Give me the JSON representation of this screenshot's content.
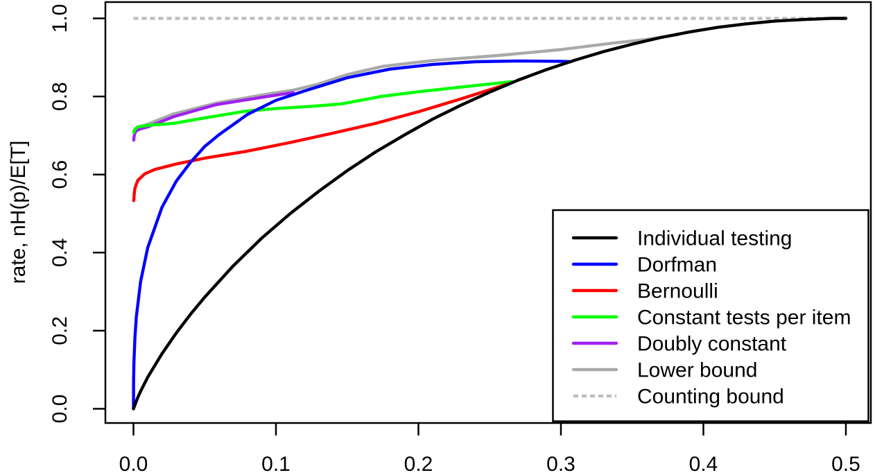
{
  "chart_data": {
    "type": "line",
    "title": "",
    "xlabel": "",
    "ylabel": "rate, nH(p)/E[T]",
    "xlim": [
      0,
      0.5
    ],
    "ylim": [
      0,
      1
    ],
    "x_ticks": [
      "0.0",
      "0.1",
      "0.2",
      "0.3",
      "0.4",
      "0.5"
    ],
    "y_ticks": [
      "0.0",
      "0.2",
      "0.4",
      "0.6",
      "0.8",
      "1.0"
    ],
    "grid": false,
    "legend_position": "bottom-right",
    "axis_color": "#000000",
    "background_color": "#ffffff",
    "series": [
      {
        "name": "Individual testing",
        "color": "#000000",
        "dash": "solid",
        "points": [
          [
            0,
            0
          ],
          [
            0.003,
            0.029
          ],
          [
            0.005,
            0.045
          ],
          [
            0.01,
            0.081
          ],
          [
            0.02,
            0.141
          ],
          [
            0.03,
            0.194
          ],
          [
            0.04,
            0.242
          ],
          [
            0.05,
            0.286
          ],
          [
            0.07,
            0.366
          ],
          [
            0.09,
            0.437
          ],
          [
            0.11,
            0.5
          ],
          [
            0.13,
            0.557
          ],
          [
            0.15,
            0.61
          ],
          [
            0.17,
            0.658
          ],
          [
            0.19,
            0.701
          ],
          [
            0.21,
            0.742
          ],
          [
            0.23,
            0.778
          ],
          [
            0.25,
            0.811
          ],
          [
            0.27,
            0.842
          ],
          [
            0.29,
            0.869
          ],
          [
            0.31,
            0.893
          ],
          [
            0.33,
            0.915
          ],
          [
            0.35,
            0.934
          ],
          [
            0.37,
            0.951
          ],
          [
            0.39,
            0.965
          ],
          [
            0.41,
            0.977
          ],
          [
            0.43,
            0.986
          ],
          [
            0.45,
            0.993
          ],
          [
            0.47,
            0.997
          ],
          [
            0.49,
            1.0
          ],
          [
            0.5,
            1.0
          ]
        ]
      },
      {
        "name": "Dorfman",
        "color": "#0000ff",
        "dash": "solid",
        "points": [
          [
            0,
            0
          ],
          [
            3e-05,
            0.03
          ],
          [
            0.0001,
            0.074
          ],
          [
            0.0003,
            0.115
          ],
          [
            0.001,
            0.182
          ],
          [
            0.002,
            0.235
          ],
          [
            0.005,
            0.326
          ],
          [
            0.01,
            0.413
          ],
          [
            0.02,
            0.516
          ],
          [
            0.03,
            0.583
          ],
          [
            0.04,
            0.631
          ],
          [
            0.05,
            0.672
          ],
          [
            0.06,
            0.702
          ],
          [
            0.08,
            0.754
          ],
          [
            0.1,
            0.79
          ],
          [
            0.12,
            0.814
          ],
          [
            0.15,
            0.848
          ],
          [
            0.18,
            0.87
          ],
          [
            0.21,
            0.882
          ],
          [
            0.24,
            0.889
          ],
          [
            0.27,
            0.891
          ],
          [
            0.3,
            0.89
          ],
          [
            0.307,
            0.889
          ]
        ]
      },
      {
        "name": "Bernoulli",
        "color": "#ff0000",
        "dash": "solid",
        "points": [
          [
            0.0002,
            0.533
          ],
          [
            0.0005,
            0.548
          ],
          [
            0.001,
            0.565
          ],
          [
            0.003,
            0.585
          ],
          [
            0.008,
            0.602
          ],
          [
            0.015,
            0.613
          ],
          [
            0.03,
            0.627
          ],
          [
            0.05,
            0.642
          ],
          [
            0.08,
            0.66
          ],
          [
            0.11,
            0.682
          ],
          [
            0.14,
            0.706
          ],
          [
            0.17,
            0.731
          ],
          [
            0.2,
            0.761
          ],
          [
            0.23,
            0.794
          ],
          [
            0.262,
            0.831
          ]
        ]
      },
      {
        "name": "Constant tests per item",
        "color": "#00ff00",
        "dash": "solid",
        "points": [
          [
            0.0003,
            0.708
          ],
          [
            0.001,
            0.716
          ],
          [
            0.003,
            0.722
          ],
          [
            0.01,
            0.726
          ],
          [
            0.028,
            0.731
          ],
          [
            0.05,
            0.745
          ],
          [
            0.078,
            0.762
          ],
          [
            0.1,
            0.769
          ],
          [
            0.126,
            0.775
          ],
          [
            0.146,
            0.781
          ],
          [
            0.174,
            0.8
          ],
          [
            0.2,
            0.812
          ],
          [
            0.23,
            0.824
          ],
          [
            0.266,
            0.838
          ]
        ]
      },
      {
        "name": "Doubly constant",
        "color": "#a020f0",
        "dash": "solid",
        "points": [
          [
            0.0002,
            0.688
          ],
          [
            0.0005,
            0.698
          ],
          [
            0.001,
            0.706
          ],
          [
            0.002,
            0.712
          ],
          [
            0.005,
            0.717
          ],
          [
            0.01,
            0.722
          ],
          [
            0.028,
            0.748
          ],
          [
            0.058,
            0.779
          ],
          [
            0.094,
            0.8
          ],
          [
            0.112,
            0.81
          ]
        ]
      },
      {
        "name": "Lower bound",
        "color": "#a9a9a9",
        "dash": "solid",
        "points": [
          [
            0.0003,
            0.712
          ],
          [
            0.001,
            0.715
          ],
          [
            0.005,
            0.723
          ],
          [
            0.01,
            0.729
          ],
          [
            0.028,
            0.755
          ],
          [
            0.058,
            0.783
          ],
          [
            0.094,
            0.806
          ],
          [
            0.112,
            0.816
          ],
          [
            0.13,
            0.832
          ],
          [
            0.15,
            0.856
          ],
          [
            0.175,
            0.877
          ],
          [
            0.21,
            0.892
          ],
          [
            0.256,
            0.905
          ],
          [
            0.3,
            0.92
          ],
          [
            0.337,
            0.937
          ],
          [
            0.36,
            0.946
          ],
          [
            0.382,
            0.958
          ]
        ]
      },
      {
        "name": "Counting bound",
        "color": "#bfbfbf",
        "dash": "dashed",
        "points": [
          [
            0,
            1
          ],
          [
            0.5,
            1
          ]
        ]
      }
    ]
  }
}
